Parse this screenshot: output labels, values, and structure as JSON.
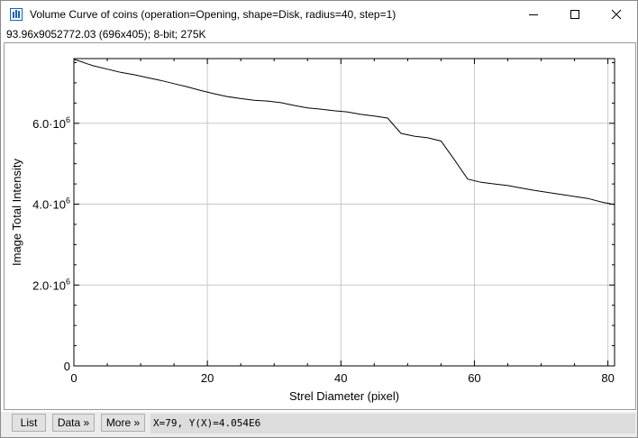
{
  "window": {
    "title": "Volume Curve of coins (operation=Opening, shape=Disk, radius=40, step=1)",
    "info": "93.96x9052772.03   (696x405); 8-bit; 275K",
    "icon": "imagej-icon"
  },
  "controls": {
    "minimize_icon": "minimize-icon",
    "maximize_icon": "maximize-icon",
    "close_icon": "close-icon"
  },
  "bottom": {
    "list_label": "List",
    "data_label": "Data »",
    "more_label": "More »",
    "coords": "X=79, Y(X)=4.054E6"
  },
  "chart_data": {
    "type": "line",
    "xlabel": "Strel Diameter (pixel)",
    "ylabel": "Image Total Intensity",
    "xlim": [
      0,
      81
    ],
    "ylim": [
      0,
      7600000
    ],
    "xticks": [
      0,
      20,
      40,
      60,
      80
    ],
    "xtick_labels": [
      "0",
      "20",
      "40",
      "60",
      "80"
    ],
    "yticks": [
      0,
      2000000,
      4000000,
      6000000
    ],
    "ytick_labels": [
      {
        "mantissa": "0",
        "exp": ""
      },
      {
        "mantissa": "2.0·10",
        "exp": "6"
      },
      {
        "mantissa": "4.0·10",
        "exp": "6"
      },
      {
        "mantissa": "6.0·10",
        "exp": "6"
      }
    ],
    "grid": true,
    "color": "#000000",
    "series": [
      {
        "x": [
          0,
          1,
          2,
          3,
          5,
          7,
          9,
          11,
          13,
          15,
          17,
          19,
          21,
          23,
          25,
          27,
          29,
          31,
          33,
          35,
          37,
          39,
          41,
          43,
          45,
          47,
          49,
          51,
          53,
          55,
          57,
          59,
          61,
          63,
          65,
          67,
          69,
          71,
          73,
          75,
          77,
          79,
          81
        ],
        "y": [
          7580000,
          7530000,
          7470000,
          7420000,
          7340000,
          7260000,
          7200000,
          7130000,
          7060000,
          6980000,
          6900000,
          6810000,
          6730000,
          6660000,
          6610000,
          6570000,
          6550000,
          6510000,
          6440000,
          6380000,
          6350000,
          6310000,
          6280000,
          6220000,
          6180000,
          6130000,
          5750000,
          5680000,
          5640000,
          5560000,
          5100000,
          4620000,
          4540000,
          4500000,
          4460000,
          4400000,
          4340000,
          4290000,
          4240000,
          4190000,
          4140000,
          4054000,
          3990000
        ]
      }
    ]
  }
}
